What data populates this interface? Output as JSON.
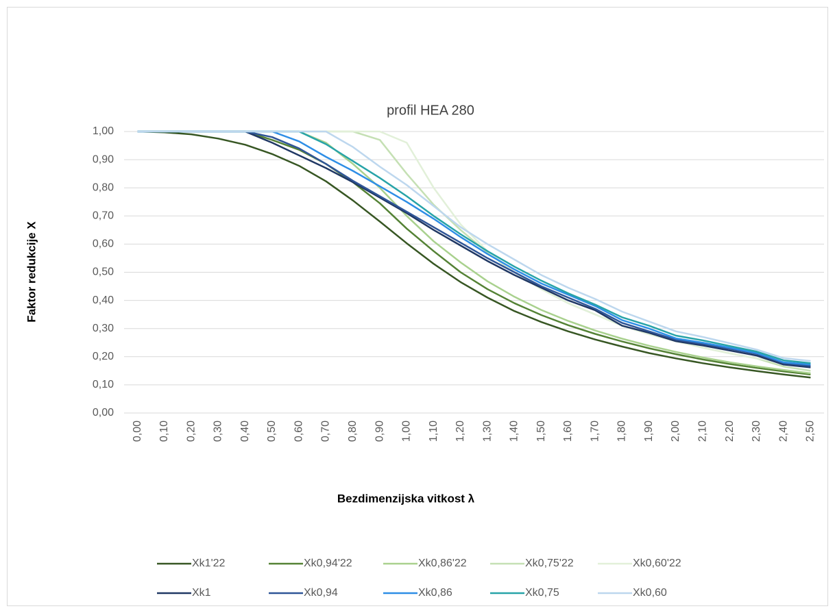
{
  "chart_data": {
    "type": "line",
    "title": "profil HEA 280",
    "x_label": "Bezdimenzijska vitkost λ",
    "y_label": "Faktor redukcije X",
    "categories": [
      "0,00",
      "0,10",
      "0,20",
      "0,30",
      "0,40",
      "0,50",
      "0,60",
      "0,70",
      "0,80",
      "0,90",
      "1,00",
      "1,10",
      "1,20",
      "1,30",
      "1,40",
      "1,50",
      "1,60",
      "1,70",
      "1,80",
      "1,90",
      "2,00",
      "2,10",
      "2,20",
      "2,30",
      "2,40",
      "2,50"
    ],
    "ylim": [
      0,
      1
    ],
    "yticks": [
      {
        "value": 0,
        "label": "0,00"
      },
      {
        "value": 0.1,
        "label": "0,10"
      },
      {
        "value": 0.2,
        "label": "0,20"
      },
      {
        "value": 0.3,
        "label": "0,30"
      },
      {
        "value": 0.4,
        "label": "0,40"
      },
      {
        "value": 0.5,
        "label": "0,50"
      },
      {
        "value": 0.6,
        "label": "0,60"
      },
      {
        "value": 0.7,
        "label": "0,70"
      },
      {
        "value": 0.8,
        "label": "0,80"
      },
      {
        "value": 0.9,
        "label": "0,90"
      },
      {
        "value": 1,
        "label": "1,00"
      }
    ],
    "grid": true,
    "legend": "bottom",
    "series": [
      {
        "name": "Xk1'22",
        "color": "#375623",
        "values": [
          1,
          0.997,
          0.99,
          0.975,
          0.953,
          0.92,
          0.878,
          0.823,
          0.755,
          0.68,
          0.603,
          0.53,
          0.465,
          0.41,
          0.362,
          0.323,
          0.29,
          0.261,
          0.236,
          0.213,
          0.194,
          0.177,
          0.162,
          0.149,
          0.137,
          0.126
        ]
      },
      {
        "name": "Xk0,94'22",
        "color": "#548235",
        "values": [
          1,
          1,
          1,
          1,
          1,
          0.97,
          0.935,
          0.885,
          0.82,
          0.745,
          0.655,
          0.575,
          0.5,
          0.44,
          0.39,
          0.348,
          0.312,
          0.281,
          0.254,
          0.23,
          0.209,
          0.19,
          0.174,
          0.16,
          0.148,
          0.137
        ]
      },
      {
        "name": "Xk0,86'22",
        "color": "#a9d18e",
        "values": [
          1,
          1,
          1,
          1,
          1,
          1,
          1,
          0.96,
          0.885,
          0.8,
          0.7,
          0.61,
          0.535,
          0.468,
          0.413,
          0.366,
          0.327,
          0.293,
          0.264,
          0.239,
          0.217,
          0.197,
          0.18,
          0.166,
          0.153,
          0.141
        ]
      },
      {
        "name": "Xk0,75'22",
        "color": "#c5e0b4",
        "values": [
          1,
          1,
          1,
          1,
          1,
          1,
          1,
          1,
          1,
          0.97,
          0.85,
          0.74,
          0.65,
          0.57,
          0.5,
          0.44,
          0.39,
          0.35,
          0.31,
          0.28,
          0.255,
          0.232,
          0.212,
          0.194,
          0.165,
          0.15
        ]
      },
      {
        "name": "Xk0,60'22",
        "color": "#e2f0d9",
        "values": [
          1,
          1,
          1,
          1,
          1,
          1,
          1,
          1,
          1,
          1,
          0.96,
          0.8,
          0.67,
          0.575,
          0.5,
          0.44,
          0.39,
          0.35,
          0.31,
          0.28,
          0.255,
          0.232,
          0.212,
          0.194,
          0.178,
          0.165
        ]
      },
      {
        "name": "Xk1",
        "color": "#203864",
        "values": [
          1,
          1,
          1,
          1,
          1,
          0.96,
          0.915,
          0.87,
          0.82,
          0.765,
          0.71,
          0.65,
          0.595,
          0.54,
          0.49,
          0.445,
          0.4,
          0.365,
          0.31,
          0.285,
          0.255,
          0.24,
          0.222,
          0.204,
          0.172,
          0.162
        ]
      },
      {
        "name": "Xk0,94",
        "color": "#2f5597",
        "values": [
          1,
          1,
          1,
          1,
          1,
          0.98,
          0.94,
          0.885,
          0.825,
          0.77,
          0.715,
          0.66,
          0.605,
          0.55,
          0.5,
          0.45,
          0.41,
          0.37,
          0.32,
          0.29,
          0.26,
          0.245,
          0.228,
          0.21,
          0.177,
          0.167
        ]
      },
      {
        "name": "Xk0,86",
        "color": "#2e8ee6",
        "values": [
          1,
          1,
          1,
          1,
          1,
          1,
          0.965,
          0.91,
          0.86,
          0.805,
          0.75,
          0.69,
          0.625,
          0.565,
          0.51,
          0.46,
          0.42,
          0.38,
          0.33,
          0.3,
          0.265,
          0.25,
          0.232,
          0.213,
          0.18,
          0.172
        ]
      },
      {
        "name": "Xk0,75",
        "color": "#27a3a8",
        "values": [
          1,
          1,
          1,
          1,
          1,
          1,
          1,
          0.955,
          0.895,
          0.835,
          0.77,
          0.7,
          0.635,
          0.575,
          0.52,
          0.47,
          0.425,
          0.385,
          0.34,
          0.31,
          0.275,
          0.258,
          0.238,
          0.218,
          0.187,
          0.177
        ]
      },
      {
        "name": "Xk0,60",
        "color": "#bdd7ee",
        "values": [
          1,
          1,
          1,
          1,
          1,
          1,
          1,
          1,
          0.945,
          0.875,
          0.81,
          0.735,
          0.66,
          0.6,
          0.545,
          0.49,
          0.445,
          0.405,
          0.36,
          0.325,
          0.29,
          0.27,
          0.248,
          0.225,
          0.195,
          0.185
        ]
      }
    ]
  }
}
